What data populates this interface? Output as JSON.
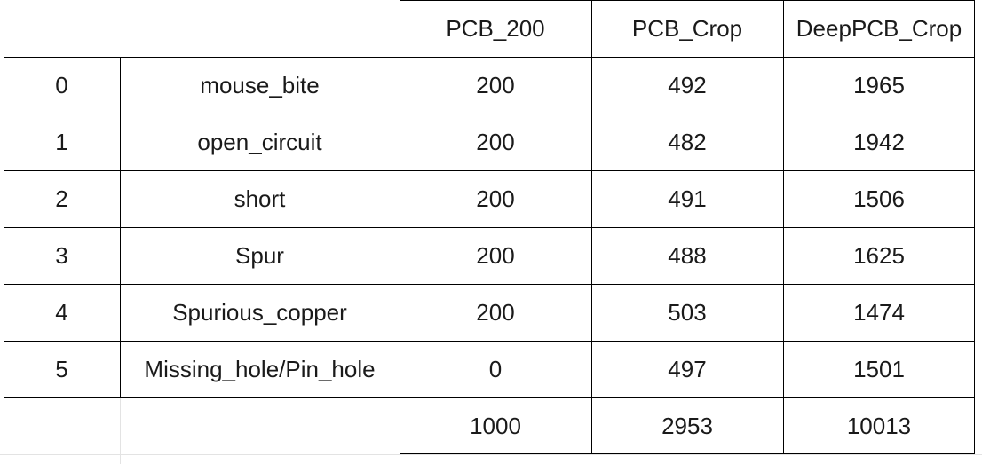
{
  "table": {
    "headers": [
      "",
      "",
      "PCB_200",
      "PCB_Crop",
      "DeepPCB_Crop"
    ],
    "rows": [
      [
        "0",
        "mouse_bite",
        "200",
        "492",
        "1965"
      ],
      [
        "1",
        "open_circuit",
        "200",
        "482",
        "1942"
      ],
      [
        "2",
        "short",
        "200",
        "491",
        "1506"
      ],
      [
        "3",
        "Spur",
        "200",
        "488",
        "1625"
      ],
      [
        "4",
        "Spurious_copper",
        "200",
        "503",
        "1474"
      ],
      [
        "5",
        "Missing_hole/Pin_hole",
        "0",
        "497",
        "1501"
      ]
    ],
    "totals": [
      "",
      "",
      "1000",
      "2953",
      "10013"
    ]
  }
}
